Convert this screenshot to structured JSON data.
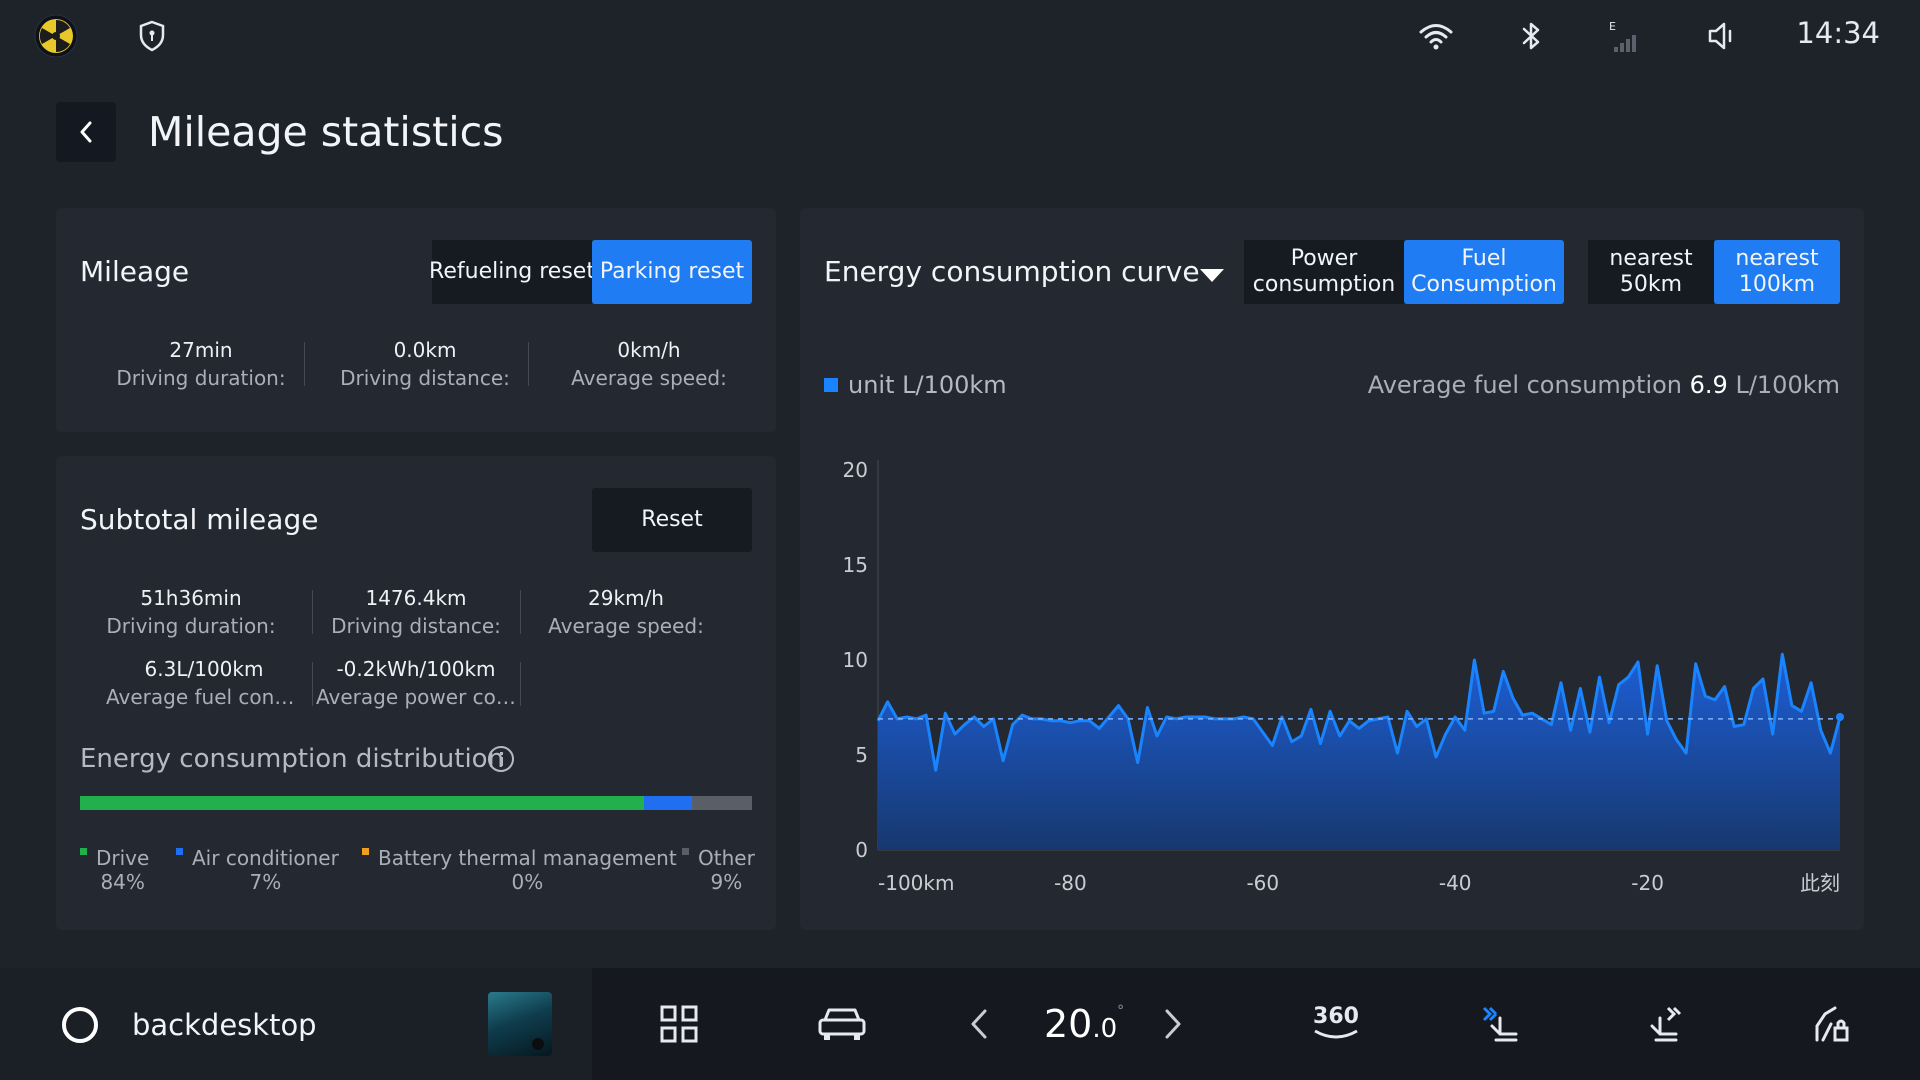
{
  "status_bar": {
    "time": "14:34",
    "icons": [
      "app-logo-icon",
      "shield-icon",
      "wifi-icon",
      "bluetooth-icon",
      "cellular-signal-icon",
      "volume-icon"
    ],
    "signal_label": "E"
  },
  "header": {
    "title": "Mileage statistics"
  },
  "mileage": {
    "title": "Mileage",
    "buttons": [
      "Refueling reset",
      "Parking reset"
    ],
    "active_button": "Parking reset",
    "stats": [
      {
        "value": "27min",
        "label": "Driving duration:"
      },
      {
        "value": "0.0km",
        "label": "Driving distance:"
      },
      {
        "value": "0km/h",
        "label": "Average speed:"
      }
    ]
  },
  "subtotal": {
    "title": "Subtotal mileage",
    "reset_label": "Reset",
    "stats": [
      {
        "value": "51h36min",
        "label": "Driving duration:"
      },
      {
        "value": "1476.4km",
        "label": "Driving distance:"
      },
      {
        "value": "29km/h",
        "label": "Average speed:"
      },
      {
        "value": "6.3L/100km",
        "label": "Average fuel consu..."
      },
      {
        "value": "-0.2kWh/100km",
        "label": "Average power con..."
      }
    ],
    "distribution": {
      "title": "Energy consumption distribution",
      "items": [
        {
          "name": "Drive",
          "percent": "84%",
          "fraction": 0.84,
          "color": "#21b04b"
        },
        {
          "name": "Air conditioner",
          "percent": "7%",
          "fraction": 0.07,
          "color": "#1f6ff0"
        },
        {
          "name": "Battery thermal management",
          "percent": "0%",
          "fraction": 0.0,
          "color": "#f0a020"
        },
        {
          "name": "Other",
          "percent": "9%",
          "fraction": 0.09,
          "color": "#5a5e66"
        }
      ]
    }
  },
  "energy_curve": {
    "title": "Energy consumption curve",
    "type_buttons": [
      "Power consumption",
      "Fuel Consumption"
    ],
    "active_type": "Fuel Consumption",
    "range_buttons": [
      "nearest 50km",
      "nearest 100km"
    ],
    "active_range": "nearest 100km",
    "unit_label": "unit L/100km",
    "avg_label": "Average fuel consumption",
    "avg_value": "6.9",
    "avg_unit": "L/100km"
  },
  "chart_data": {
    "type": "area",
    "x_tick_labels": [
      "-100km",
      "-80",
      "-60",
      "-40",
      "-20",
      "此刻"
    ],
    "y_ticks": [
      0,
      5,
      10,
      15,
      20
    ],
    "xlim": [
      -100,
      0
    ],
    "ylim": [
      0,
      20
    ],
    "average_line": 6.9,
    "grid": false,
    "color": "#1a84ff",
    "x": [
      -100,
      -99,
      -98,
      -97,
      -96,
      -95,
      -94,
      -93,
      -92,
      -91,
      -90,
      -89,
      -88,
      -87,
      -86,
      -85,
      -84,
      -83,
      -82,
      -81,
      -80,
      -79,
      -78,
      -77,
      -76,
      -75,
      -74,
      -73,
      -72,
      -71,
      -70,
      -69,
      -68,
      -67,
      -66,
      -65,
      -64,
      -63,
      -62,
      -61,
      -60,
      -59,
      -58,
      -57,
      -56,
      -55,
      -54,
      -53,
      -52,
      -51,
      -50,
      -49,
      -48,
      -47,
      -46,
      -45,
      -44,
      -43,
      -42,
      -41,
      -40,
      -39,
      -38,
      -37,
      -36,
      -35,
      -34,
      -33,
      -32,
      -31,
      -30,
      -29,
      -28,
      -27,
      -26,
      -25,
      -24,
      -23,
      -22,
      -21,
      -20,
      -19,
      -18,
      -17,
      -16,
      -15,
      -14,
      -13,
      -12,
      -11,
      -10,
      -9,
      -8,
      -7,
      -6,
      -5,
      -4,
      -3,
      -2,
      -1,
      0
    ],
    "values": [
      6.8,
      7.8,
      6.9,
      7.0,
      6.9,
      7.1,
      4.2,
      7.2,
      6.1,
      6.6,
      7.0,
      6.5,
      6.9,
      4.7,
      6.6,
      7.1,
      6.9,
      6.9,
      6.8,
      6.8,
      6.7,
      6.8,
      6.8,
      6.4,
      7.0,
      7.6,
      6.9,
      4.6,
      7.5,
      6.0,
      7.0,
      6.9,
      7.0,
      7.0,
      7.0,
      6.9,
      6.9,
      6.9,
      7.0,
      6.9,
      6.2,
      5.5,
      7.0,
      5.7,
      6.0,
      7.4,
      5.6,
      7.3,
      6.0,
      6.8,
      6.4,
      6.8,
      6.9,
      7.0,
      5.1,
      7.3,
      6.5,
      6.9,
      4.9,
      6.1,
      7.0,
      6.3,
      10.0,
      7.2,
      7.3,
      9.4,
      8.0,
      7.1,
      7.2,
      6.9,
      6.6,
      8.8,
      6.3,
      8.5,
      6.2,
      9.1,
      6.7,
      8.7,
      9.1,
      9.9,
      6.1,
      9.7,
      6.8,
      5.8,
      5.1,
      9.8,
      8.1,
      7.9,
      8.6,
      6.5,
      6.6,
      8.5,
      9.0,
      6.1,
      10.3,
      7.6,
      7.3,
      8.8,
      6.3,
      5.1,
      7.0
    ]
  },
  "dock": {
    "home_label": "backdesktop",
    "temperature_main": "20",
    "temperature_decimal": ".0",
    "temperature_unit": "°",
    "view360_label": "360",
    "icons": [
      "home-circle-icon",
      "media-thumbnail",
      "apps-grid-icon",
      "car-icon",
      "temp-down-icon",
      "temp-up-icon",
      "camera-360-icon",
      "driver-seat-fan-icon",
      "passenger-seat-fan-icon",
      "seat-lock-icon"
    ]
  }
}
